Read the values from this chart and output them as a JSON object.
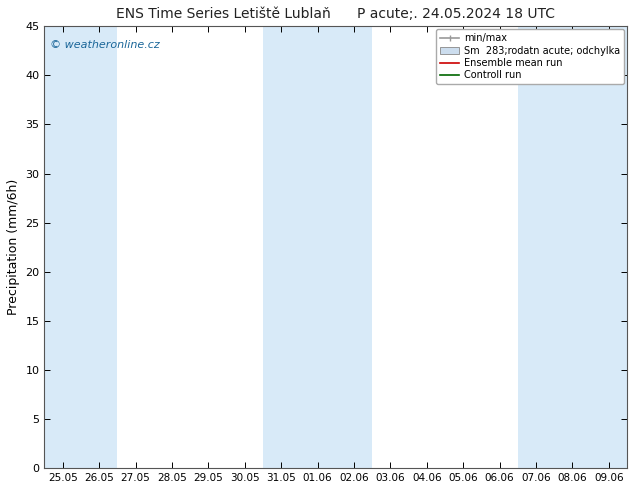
{
  "title": "ENS Time Series Letiště Lublaň      P acute;. 24.05.2024 18 UTC",
  "ylabel": "Precipitation (mm/6h)",
  "ylim": [
    0,
    45
  ],
  "yticks": [
    0,
    5,
    10,
    15,
    20,
    25,
    30,
    35,
    40,
    45
  ],
  "xtick_labels": [
    "25.05",
    "26.05",
    "27.05",
    "28.05",
    "29.05",
    "30.05",
    "31.05",
    "01.06",
    "02.06",
    "03.06",
    "04.06",
    "05.06",
    "06.06",
    "07.06",
    "08.06",
    "09.06"
  ],
  "background_color": "#ffffff",
  "plot_bg_color": "#ffffff",
  "band_color": "#d8eaf8",
  "blue_band_indices": [
    0,
    1,
    6,
    7,
    8,
    13,
    14
  ],
  "watermark": "© weatheronline.cz",
  "watermark_color": "#1a6699",
  "fig_width": 6.34,
  "fig_height": 4.9,
  "dpi": 100
}
